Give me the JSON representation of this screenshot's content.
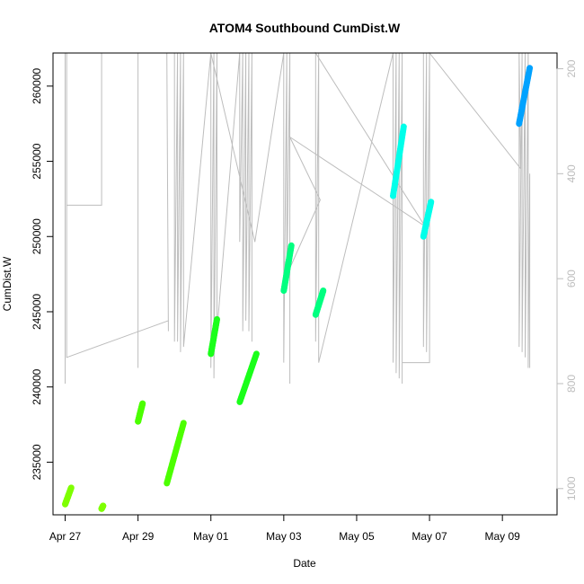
{
  "chart_data": {
    "type": "scatter",
    "title": "ATOM4 Southbound CumDist.W",
    "xlabel": "Date",
    "ylabel": "CumDist.W",
    "x_axis": {
      "kind": "date",
      "range": [
        "2014-04-26T16:00",
        "2014-05-10T12:00"
      ],
      "ticks": [
        "2014-04-27",
        "2014-04-29",
        "2014-05-01",
        "2014-05-03",
        "2014-05-05",
        "2014-05-07",
        "2014-05-09"
      ],
      "tick_labels": [
        "Apr 27",
        "Apr 29",
        "May 01",
        "May 03",
        "May 05",
        "May 07",
        "May 09"
      ]
    },
    "y_axis_left": {
      "range": [
        231500,
        262200
      ],
      "ticks": [
        235000,
        240000,
        245000,
        250000,
        255000,
        260000
      ]
    },
    "y_axis_right": {
      "range": [
        1050,
        170
      ],
      "ticks": [
        200,
        400,
        600,
        800,
        1000
      ],
      "color": "#bdbdbd"
    },
    "series": [
      {
        "color": "#7fff00",
        "segments": [
          {
            "start": "2014-04-27T00:00",
            "end": "2014-04-27T04:00",
            "y0": 232200,
            "y1": 233300
          },
          {
            "start": "2014-04-28T00:00",
            "end": "2014-04-28T01:00",
            "y0": 231900,
            "y1": 232100
          }
        ]
      },
      {
        "color": "#4cff00",
        "segments": [
          {
            "start": "2014-04-29T00:00",
            "end": "2014-04-29T03:00",
            "y0": 237700,
            "y1": 238900
          },
          {
            "start": "2014-04-29T19:00",
            "end": "2014-04-30T06:00",
            "y0": 233600,
            "y1": 237600
          }
        ]
      },
      {
        "color": "#1bff1b",
        "segments": [
          {
            "start": "2014-05-01T00:00",
            "end": "2014-05-01T04:00",
            "y0": 242200,
            "y1": 244500
          },
          {
            "start": "2014-05-01T19:00",
            "end": "2014-05-02T06:00",
            "y0": 239000,
            "y1": 242200
          }
        ]
      },
      {
        "color": "#00ff80",
        "segments": [
          {
            "start": "2014-05-03T00:00",
            "end": "2014-05-03T05:00",
            "y0": 246400,
            "y1": 249400
          },
          {
            "start": "2014-05-03T21:00",
            "end": "2014-05-04T02:00",
            "y0": 244800,
            "y1": 246400
          }
        ]
      },
      {
        "color": "#00ffea",
        "segments": [
          {
            "start": "2014-05-06T00:00",
            "end": "2014-05-06T07:00",
            "y0": 252700,
            "y1": 257300
          },
          {
            "start": "2014-05-06T20:00",
            "end": "2014-05-07T01:00",
            "y0": 250000,
            "y1": 252300
          }
        ]
      },
      {
        "color": "#00a2ff",
        "segments": [
          {
            "start": "2014-05-09T11:00",
            "end": "2014-05-09T18:00",
            "y0": 257500,
            "y1": 261200
          }
        ]
      }
    ],
    "background_trace": {
      "color": "#bdbdbd",
      "axis": "right",
      "polyline": [
        [
          "2014-04-27T00:00",
          170
        ],
        [
          "2014-04-27T00:00",
          800
        ],
        [
          "2014-04-27T00:00",
          170
        ],
        [
          "2014-04-27T01:00",
          170
        ],
        [
          "2014-04-27T01:00",
          460
        ],
        [
          "2014-04-28T00:00",
          460
        ],
        [
          "2014-04-28T00:00",
          170
        ],
        [
          "2014-04-27T01:00",
          170
        ],
        [
          "2014-04-27T01:00",
          750
        ],
        [
          "2014-04-29T20:00",
          680
        ],
        [
          "2014-04-29T20:00",
          700
        ],
        [
          "2014-04-29T19:00",
          170
        ],
        [
          "2014-04-29T00:00",
          170
        ],
        [
          "2014-04-29T00:00",
          770
        ],
        [
          "2014-04-29T00:00",
          170
        ],
        [
          "2014-04-28T17:00",
          170
        ],
        [
          "2014-04-30T00:00",
          170
        ],
        [
          "2014-04-30T00:00",
          720
        ],
        [
          "2014-04-30T02:00",
          170
        ],
        [
          "2014-04-30T02:00",
          720
        ],
        [
          "2014-04-30T04:00",
          170
        ],
        [
          "2014-04-30T04:00",
          740
        ],
        [
          "2014-04-30T06:00",
          170
        ],
        [
          "2014-04-30T06:00",
          730
        ],
        [
          "2014-05-01T00:00",
          170
        ],
        [
          "2014-05-01T00:00",
          770
        ],
        [
          "2014-05-01T02:00",
          170
        ],
        [
          "2014-05-01T02:00",
          790
        ],
        [
          "2014-05-01T04:00",
          170
        ],
        [
          "2014-05-01T04:00",
          700
        ],
        [
          "2014-05-01T19:00",
          170
        ],
        [
          "2014-05-01T19:00",
          530
        ],
        [
          "2014-05-01T21:00",
          170
        ],
        [
          "2014-05-01T21:00",
          700
        ],
        [
          "2014-05-01T23:00",
          170
        ],
        [
          "2014-05-01T23:00",
          680
        ],
        [
          "2014-05-02T01:00",
          170
        ],
        [
          "2014-05-02T01:00",
          700
        ],
        [
          "2014-05-02T03:00",
          170
        ],
        [
          "2014-05-02T03:00",
          720
        ],
        [
          "2014-05-02T03:00",
          170
        ],
        [
          "2014-05-01T00:00",
          170
        ],
        [
          "2014-05-02T05:00",
          530
        ],
        [
          "2014-05-03T00:00",
          170
        ],
        [
          "2014-05-03T00:00",
          760
        ],
        [
          "2014-05-03T02:00",
          170
        ],
        [
          "2014-05-03T02:00",
          620
        ],
        [
          "2014-05-03T04:00",
          170
        ],
        [
          "2014-05-03T04:00",
          800
        ],
        [
          "2014-05-03T04:00",
          580
        ],
        [
          "2014-05-04T00:00",
          450
        ],
        [
          "2014-05-03T04:00",
          330
        ],
        [
          "2014-05-06T21:00",
          500
        ],
        [
          "2014-05-03T21:00",
          170
        ],
        [
          "2014-05-03T21:00",
          720
        ],
        [
          "2014-05-03T23:00",
          170
        ],
        [
          "2014-05-03T23:00",
          760
        ],
        [
          "2014-05-06T00:00",
          170
        ],
        [
          "2014-05-06T00:00",
          760
        ],
        [
          "2014-05-06T02:00",
          170
        ],
        [
          "2014-05-06T02:00",
          780
        ],
        [
          "2014-05-06T04:00",
          170
        ],
        [
          "2014-05-06T04:00",
          790
        ],
        [
          "2014-05-06T06:00",
          170
        ],
        [
          "2014-05-06T06:00",
          800
        ],
        [
          "2014-05-06T06:00",
          760
        ],
        [
          "2014-05-07T00:00",
          760
        ],
        [
          "2014-05-07T00:00",
          170
        ],
        [
          "2014-05-06T20:00",
          170
        ],
        [
          "2014-05-06T20:00",
          730
        ],
        [
          "2014-05-06T22:00",
          170
        ],
        [
          "2014-05-06T22:00",
          740
        ],
        [
          "2014-05-07T00:00",
          170
        ],
        [
          "2014-05-09T12:00",
          390
        ],
        [
          "2014-05-09T11:00",
          170
        ],
        [
          "2014-05-09T11:00",
          730
        ],
        [
          "2014-05-09T13:00",
          170
        ],
        [
          "2014-05-09T13:00",
          740
        ],
        [
          "2014-05-09T15:00",
          170
        ],
        [
          "2014-05-09T15:00",
          750
        ],
        [
          "2014-05-09T17:00",
          170
        ],
        [
          "2014-05-09T17:00",
          770
        ],
        [
          "2014-05-09T18:00",
          400
        ],
        [
          "2014-05-09T18:00",
          770
        ]
      ]
    }
  }
}
